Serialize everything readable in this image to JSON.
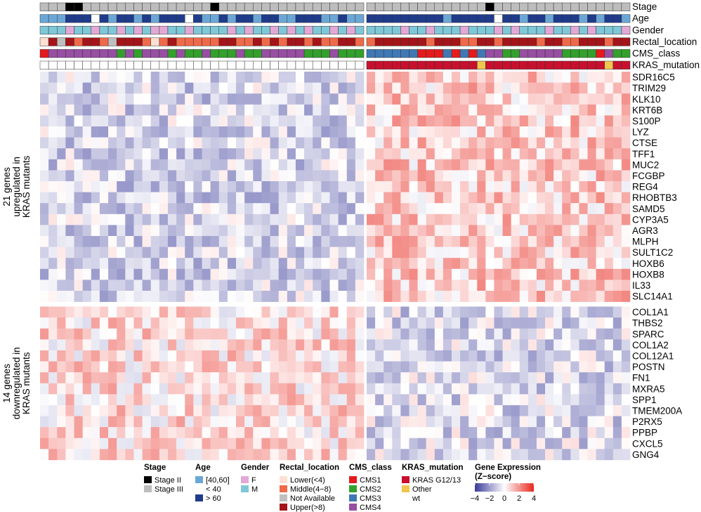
{
  "chart_data": {
    "type": "heatmap",
    "title": "",
    "n_samples_left": 38,
    "n_samples_right": 31,
    "left_group_label": "",
    "annotation_rows": [
      "Stage",
      "Age",
      "Gender",
      "Rectal_location",
      "CMS_class",
      "KRAS_mutation"
    ],
    "row_group_labels": [
      {
        "line1": "21 genes",
        "line2": "upregulated in",
        "line3": "KRAS mutants"
      },
      {
        "line1": "14 genes",
        "line2": "downregulated in",
        "line3": "KRAS mutants"
      }
    ],
    "genes_up": [
      "SDR16C5",
      "TRIM29",
      "KLK10",
      "KRT6B",
      "S100P",
      "LYZ",
      "CTSE",
      "TFF1",
      "MUC2",
      "FCGBP",
      "REG4",
      "RHOBTB3",
      "SAMD5",
      "CYP3A5",
      "AGR3",
      "MLPH",
      "SULT1C2",
      "HOXB6",
      "HOXB8",
      "IL33",
      "SLC14A1"
    ],
    "genes_down": [
      "COL1A1",
      "THBS2",
      "SPARC",
      "COL1A2",
      "COL12A1",
      "POSTN",
      "FN1",
      "MXRA5",
      "SPP1",
      "TMEM200A",
      "P2RX5",
      "PPBP",
      "CXCL5",
      "GNG4"
    ],
    "color_scale": {
      "min": -4,
      "max": 4,
      "ticks": [
        "−4",
        "−2",
        "0",
        "2",
        "4"
      ],
      "low": "#3a3a9a",
      "mid": "#ffffff",
      "high": "#e8261c"
    },
    "legend": {
      "Stage": {
        "title": "Stage",
        "items": [
          {
            "label": "Stage II",
            "color": "#000000"
          },
          {
            "label": "Stage III",
            "color": "#bdbdbd"
          }
        ]
      },
      "Age": {
        "title": "Age",
        "items": [
          {
            "label": "[40,60]",
            "color": "#6ba7d6"
          },
          {
            "label": "< 40",
            "color": "#ffffff"
          },
          {
            "label": "> 60",
            "color": "#1f3b8c"
          }
        ]
      },
      "Gender": {
        "title": "Gender",
        "items": [
          {
            "label": "F",
            "color": "#e3a9d6"
          },
          {
            "label": "M",
            "color": "#7fc8d8"
          }
        ]
      },
      "Rectal_location": {
        "title": "Rectal_location",
        "items": [
          {
            "label": "Lower(<4)",
            "color": "#fde0d2"
          },
          {
            "label": "Middle(4−8)",
            "color": "#ef6a4a"
          },
          {
            "label": "Not Available",
            "color": "#bfbfbf"
          },
          {
            "label": "Upper(>8)",
            "color": "#a51418"
          }
        ]
      },
      "CMS_class": {
        "title": "CMS_class",
        "items": [
          {
            "label": "CMS1",
            "color": "#e41a1c"
          },
          {
            "label": "CMS2",
            "color": "#33a02c"
          },
          {
            "label": "CMS3",
            "color": "#3f78b5"
          },
          {
            "label": "CMS4",
            "color": "#984ea3"
          }
        ]
      },
      "KRAS_mutation": {
        "title": "KRAS_mutation",
        "items": [
          {
            "label": "KRAS G12/13",
            "color": "#c8102e"
          },
          {
            "label": "Other",
            "color": "#f0c64e"
          },
          {
            "label": "wt",
            "color": "#ffffff"
          }
        ]
      },
      "Expression": {
        "title1": "Gene Expression",
        "title2": "(Z−score)"
      }
    },
    "annotations": {
      "Stage": [
        "III",
        "III",
        "III",
        "II",
        "II",
        "III",
        "III",
        "III",
        "III",
        "III",
        "III",
        "III",
        "III",
        "III",
        "III",
        "III",
        "III",
        "III",
        "III",
        "III",
        "II",
        "III",
        "III",
        "III",
        "III",
        "III",
        "III",
        "III",
        "III",
        "III",
        "III",
        "III",
        "III",
        "III",
        "III",
        "III",
        "III",
        "III",
        "III",
        "III",
        "III",
        "III",
        "III",
        "III",
        "III",
        "III",
        "III",
        "III",
        "III",
        "III",
        "III",
        "III",
        "II",
        "III",
        "III",
        "III",
        "III",
        "III",
        "III",
        "III",
        "III",
        "III",
        "III",
        "III",
        "III",
        "III",
        "III",
        "III",
        "III"
      ],
      "Age": [
        "mid",
        "mid",
        "mid",
        "old",
        "old",
        "old",
        "young",
        "old",
        "mid",
        "old",
        "old",
        "mid",
        "old",
        "mid",
        "old",
        "old",
        "old",
        "young",
        "old",
        "mid",
        "mid",
        "old",
        "mid",
        "old",
        "old",
        "mid",
        "old",
        "old",
        "mid",
        "mid",
        "old",
        "old",
        "old",
        "mid",
        "mid",
        "old",
        "mid",
        "mid",
        "old",
        "old",
        "old",
        "old",
        "old",
        "old",
        "old",
        "old",
        "old",
        "mid",
        "old",
        "old",
        "old",
        "old",
        "old",
        "young",
        "old",
        "old",
        "mid",
        "old",
        "old",
        "mid",
        "old",
        "old",
        "old",
        "mid",
        "old",
        "mid",
        "old",
        "old",
        "mid"
      ],
      "Gender": [
        "M",
        "M",
        "M",
        "F",
        "M",
        "M",
        "F",
        "M",
        "M",
        "F",
        "M",
        "F",
        "M",
        "F",
        "F",
        "M",
        "M",
        "F",
        "M",
        "M",
        "M",
        "M",
        "F",
        "M",
        "F",
        "M",
        "M",
        "F",
        "M",
        "F",
        "M",
        "F",
        "M",
        "M",
        "F",
        "M",
        "F",
        "M",
        "M",
        "M",
        "M",
        "M",
        "F",
        "M",
        "M",
        "F",
        "M",
        "M",
        "M",
        "F",
        "M",
        "M",
        "M",
        "F",
        "M",
        "F",
        "M",
        "M",
        "M",
        "F",
        "M",
        "M",
        "F",
        "M",
        "F",
        "M",
        "M",
        "M",
        "F"
      ],
      "Rectal_location": [
        "lower",
        "upper",
        "na",
        "upper",
        "mid",
        "upper",
        "upper",
        "mid",
        "na",
        "upper",
        "upper",
        "upper",
        "mid",
        "lower",
        "mid",
        "upper",
        "mid",
        "mid",
        "mid",
        "mid",
        "mid",
        "upper",
        "upper",
        "mid",
        "mid",
        "upper",
        "mid",
        "upper",
        "mid",
        "upper",
        "upper",
        "mid",
        "upper",
        "mid",
        "mid",
        "upper",
        "upper",
        "mid",
        "mid",
        "upper",
        "upper",
        "upper",
        "upper",
        "upper",
        "upper",
        "mid",
        "upper",
        "upper",
        "upper",
        "mid",
        "mid",
        "upper",
        "upper",
        "mid",
        "upper",
        "upper",
        "upper",
        "upper",
        "mid",
        "upper",
        "upper",
        "mid",
        "mid",
        "upper",
        "upper",
        "upper",
        "mid",
        "upper",
        "upper"
      ],
      "CMS_class": [
        "CMS1",
        "CMS4",
        "CMS4",
        "CMS4",
        "CMS4",
        "CMS4",
        "CMS4",
        "CMS4",
        "CMS4",
        "CMS2",
        "CMS4",
        "CMS2",
        "CMS4",
        "CMS4",
        "CMS4",
        "CMS2",
        "CMS4",
        "CMS2",
        "CMS2",
        "CMS4",
        "CMS2",
        "CMS2",
        "CMS2",
        "CMS4",
        "CMS2",
        "CMS2",
        "CMS4",
        "CMS4",
        "CMS4",
        "CMS4",
        "CMS4",
        "CMS2",
        "CMS2",
        "CMS2",
        "CMS4",
        "CMS2",
        "CMS2",
        "CMS2",
        "CMS3",
        "CMS3",
        "CMS3",
        "CMS3",
        "CMS3",
        "CMS3",
        "CMS1",
        "CMS1",
        "CMS1",
        "CMS3",
        "CMS1",
        "CMS3",
        "CMS1",
        "CMS3",
        "CMS4",
        "CMS4",
        "CMS2",
        "CMS2",
        "CMS4",
        "CMS4",
        "CMS4",
        "CMS4",
        "CMS4",
        "CMS2",
        "CMS2",
        "CMS2",
        "CMS2",
        "CMS1",
        "CMS4",
        "CMS2",
        "CMS2"
      ],
      "KRAS_mutation": [
        "wt",
        "wt",
        "wt",
        "wt",
        "wt",
        "wt",
        "wt",
        "wt",
        "wt",
        "wt",
        "wt",
        "wt",
        "wt",
        "wt",
        "wt",
        "wt",
        "wt",
        "wt",
        "wt",
        "wt",
        "wt",
        "wt",
        "wt",
        "wt",
        "wt",
        "wt",
        "wt",
        "wt",
        "wt",
        "wt",
        "wt",
        "wt",
        "wt",
        "wt",
        "wt",
        "wt",
        "wt",
        "wt",
        "g12",
        "g12",
        "g12",
        "g12",
        "g12",
        "g12",
        "g12",
        "g12",
        "g12",
        "g12",
        "g12",
        "g12",
        "g12",
        "other",
        "g12",
        "g12",
        "g12",
        "g12",
        "g12",
        "g12",
        "g12",
        "g12",
        "g12",
        "g12",
        "g12",
        "g12",
        "g12",
        "g12",
        "other",
        "g12",
        "g12"
      ]
    }
  }
}
